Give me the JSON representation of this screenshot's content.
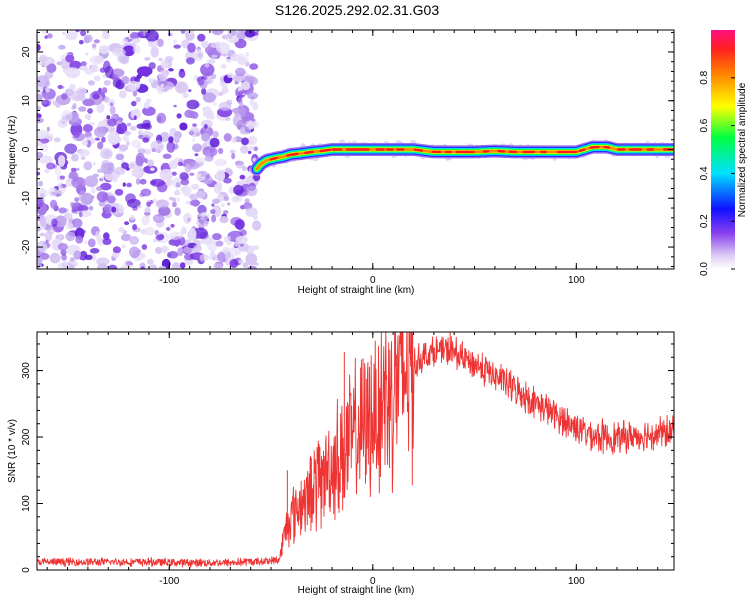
{
  "title": "S126.2025.292.02.31.G03",
  "chart_data": [
    {
      "type": "heatmap",
      "xlabel": "Height of straight line (km)",
      "ylabel": "Frequency (Hz)",
      "xlim": [
        -165,
        148
      ],
      "ylim": [
        -24.5,
        24.5
      ],
      "xticks": [
        -100,
        0,
        100
      ],
      "yticks": [
        -20,
        -10,
        0,
        10,
        20
      ],
      "noise_region_x": [
        -165,
        -57
      ],
      "ridge": {
        "x": [
          -57,
          -55,
          -52,
          -48,
          -44,
          -40,
          -35,
          -30,
          -25,
          -20,
          -15,
          -10,
          -5,
          0,
          10,
          20,
          30,
          40,
          50,
          60,
          70,
          80,
          90,
          100,
          104,
          108,
          115,
          120,
          130,
          140,
          148
        ],
        "y": [
          -4.0,
          -3.0,
          -2.2,
          -1.8,
          -1.5,
          -1.0,
          -0.8,
          -0.5,
          -0.3,
          0,
          0,
          0,
          0,
          0,
          0,
          0,
          -0.5,
          -0.5,
          -0.5,
          -0.3,
          -0.5,
          -0.5,
          -0.5,
          -0.5,
          0,
          0.5,
          0.5,
          0,
          0,
          0,
          0
        ]
      },
      "colorbar": {
        "label": "Normalized spectral amplitude",
        "ticks": [
          "0.0",
          "0.2",
          "0.4",
          "0.6",
          "0.8"
        ]
      }
    },
    {
      "type": "line",
      "xlabel": "Height of straight line (km)",
      "ylabel": "SNR (10 * v/v)",
      "xlim": [
        -165,
        148
      ],
      "ylim": [
        0,
        358
      ],
      "xticks": [
        -100,
        0,
        100
      ],
      "yticks": [
        0,
        100,
        200,
        300
      ],
      "color": "#ee3333",
      "series": [
        {
          "name": "SNR",
          "x": [
            -165,
            -150,
            -130,
            -110,
            -90,
            -70,
            -55,
            -46,
            -43,
            -40,
            -35,
            -30,
            -25,
            -20,
            -15,
            -10,
            -5,
            0,
            5,
            10,
            15,
            20,
            25,
            30,
            35,
            40,
            45,
            50,
            55,
            60,
            65,
            70,
            75,
            80,
            85,
            90,
            95,
            100,
            105,
            110,
            115,
            120,
            125,
            130,
            135,
            140,
            148
          ],
          "y": [
            12,
            12,
            12,
            12,
            11,
            11,
            13,
            15,
            60,
            85,
            100,
            120,
            140,
            160,
            175,
            195,
            215,
            235,
            260,
            280,
            300,
            310,
            322,
            328,
            330,
            326,
            318,
            310,
            300,
            292,
            282,
            272,
            262,
            252,
            242,
            232,
            222,
            215,
            207,
            202,
            200,
            198,
            200,
            202,
            204,
            206,
            208
          ]
        }
      ],
      "spikes": [
        {
          "x": -42,
          "y": 150
        },
        {
          "x": -14,
          "y": 328
        },
        {
          "x": 38,
          "y": 358
        }
      ]
    }
  ]
}
